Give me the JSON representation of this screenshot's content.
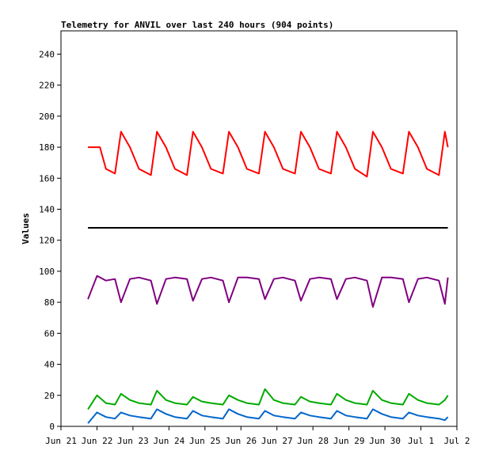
{
  "chart_data": {
    "type": "line",
    "title": "Telemetry for ANVIL over last 240 hours (904 points)",
    "xlabel": "",
    "ylabel": "Values",
    "xlim": [
      "2026-06-21",
      "2026-07-02"
    ],
    "ylim": [
      0,
      255
    ],
    "xticks": [
      {
        "date": "2026-06-21",
        "label": "Jun 21"
      },
      {
        "date": "2026-06-22",
        "label": "Jun 22"
      },
      {
        "date": "2026-06-23",
        "label": "Jun 23"
      },
      {
        "date": "2026-06-24",
        "label": "Jun 24"
      },
      {
        "date": "2026-06-25",
        "label": "Jun 25"
      },
      {
        "date": "2026-06-26",
        "label": "Jun 26"
      },
      {
        "date": "2026-06-27",
        "label": "Jun 27"
      },
      {
        "date": "2026-06-28",
        "label": "Jun 28"
      },
      {
        "date": "2026-06-29",
        "label": "Jun 29"
      },
      {
        "date": "2026-06-30",
        "label": "Jun 30"
      },
      {
        "date": "2026-07-01",
        "label": "Jul 1"
      },
      {
        "date": "2026-07-02",
        "label": "Jul 2"
      }
    ],
    "yticks": [
      0,
      20,
      40,
      60,
      80,
      100,
      120,
      140,
      160,
      180,
      200,
      220,
      240
    ],
    "grid": false,
    "legend": "none",
    "series": [
      {
        "color": "#ff0000",
        "x": [
          "2026-06-21 18:00",
          "2026-06-22 02:00",
          "2026-06-22 06:00",
          "2026-06-22 12:00",
          "2026-06-22 16:00",
          "2026-06-22 22:00",
          "2026-06-23 04:00",
          "2026-06-23 12:00",
          "2026-06-23 16:00",
          "2026-06-23 22:00",
          "2026-06-24 04:00",
          "2026-06-24 12:00",
          "2026-06-24 16:00",
          "2026-06-24 22:00",
          "2026-06-25 04:00",
          "2026-06-25 12:00",
          "2026-06-25 16:00",
          "2026-06-25 22:00",
          "2026-06-26 04:00",
          "2026-06-26 12:00",
          "2026-06-26 16:00",
          "2026-06-26 22:00",
          "2026-06-27 04:00",
          "2026-06-27 12:00",
          "2026-06-27 16:00",
          "2026-06-27 22:00",
          "2026-06-28 04:00",
          "2026-06-28 12:00",
          "2026-06-28 16:00",
          "2026-06-28 22:00",
          "2026-06-29 04:00",
          "2026-06-29 12:00",
          "2026-06-29 16:00",
          "2026-06-29 22:00",
          "2026-06-30 04:00",
          "2026-06-30 12:00",
          "2026-06-30 16:00",
          "2026-06-30 22:00",
          "2026-07-01 04:00",
          "2026-07-01 12:00",
          "2026-07-01 16:00",
          "2026-07-01 18:00"
        ],
        "y": [
          180,
          180,
          166,
          163,
          190,
          180,
          166,
          162,
          190,
          180,
          166,
          162,
          190,
          180,
          166,
          163,
          190,
          180,
          166,
          163,
          190,
          180,
          166,
          163,
          190,
          180,
          166,
          163,
          190,
          180,
          166,
          161,
          190,
          180,
          166,
          163,
          190,
          180,
          166,
          162,
          190,
          180
        ]
      },
      {
        "color": "#000000",
        "x": [
          "2026-06-21 18:00",
          "2026-07-01 18:00"
        ],
        "y": [
          128,
          128
        ]
      },
      {
        "color": "#800080",
        "x": [
          "2026-06-21 18:00",
          "2026-06-22 00:00",
          "2026-06-22 06:00",
          "2026-06-22 12:00",
          "2026-06-22 16:00",
          "2026-06-22 22:00",
          "2026-06-23 04:00",
          "2026-06-23 12:00",
          "2026-06-23 16:00",
          "2026-06-23 22:00",
          "2026-06-24 04:00",
          "2026-06-24 12:00",
          "2026-06-24 16:00",
          "2026-06-24 22:00",
          "2026-06-25 04:00",
          "2026-06-25 12:00",
          "2026-06-25 16:00",
          "2026-06-25 22:00",
          "2026-06-26 04:00",
          "2026-06-26 12:00",
          "2026-06-26 16:00",
          "2026-06-26 22:00",
          "2026-06-27 04:00",
          "2026-06-27 12:00",
          "2026-06-27 16:00",
          "2026-06-27 22:00",
          "2026-06-28 04:00",
          "2026-06-28 12:00",
          "2026-06-28 16:00",
          "2026-06-28 22:00",
          "2026-06-29 04:00",
          "2026-06-29 12:00",
          "2026-06-29 16:00",
          "2026-06-29 22:00",
          "2026-06-30 04:00",
          "2026-06-30 12:00",
          "2026-06-30 16:00",
          "2026-06-30 22:00",
          "2026-07-01 04:00",
          "2026-07-01 12:00",
          "2026-07-01 16:00",
          "2026-07-01 18:00"
        ],
        "y": [
          82,
          97,
          94,
          95,
          80,
          95,
          96,
          94,
          79,
          95,
          96,
          95,
          81,
          95,
          96,
          94,
          80,
          96,
          96,
          95,
          82,
          95,
          96,
          94,
          81,
          95,
          96,
          95,
          82,
          95,
          96,
          94,
          77,
          96,
          96,
          95,
          80,
          95,
          96,
          94,
          79,
          96
        ]
      },
      {
        "color": "#00aa00",
        "x": [
          "2026-06-21 18:00",
          "2026-06-22 00:00",
          "2026-06-22 06:00",
          "2026-06-22 12:00",
          "2026-06-22 16:00",
          "2026-06-22 22:00",
          "2026-06-23 04:00",
          "2026-06-23 12:00",
          "2026-06-23 16:00",
          "2026-06-23 22:00",
          "2026-06-24 04:00",
          "2026-06-24 12:00",
          "2026-06-24 16:00",
          "2026-06-24 22:00",
          "2026-06-25 04:00",
          "2026-06-25 12:00",
          "2026-06-25 16:00",
          "2026-06-25 22:00",
          "2026-06-26 04:00",
          "2026-06-26 12:00",
          "2026-06-26 16:00",
          "2026-06-26 22:00",
          "2026-06-27 04:00",
          "2026-06-27 12:00",
          "2026-06-27 16:00",
          "2026-06-27 22:00",
          "2026-06-28 04:00",
          "2026-06-28 12:00",
          "2026-06-28 16:00",
          "2026-06-28 22:00",
          "2026-06-29 04:00",
          "2026-06-29 12:00",
          "2026-06-29 16:00",
          "2026-06-29 22:00",
          "2026-06-30 04:00",
          "2026-06-30 12:00",
          "2026-06-30 16:00",
          "2026-06-30 22:00",
          "2026-07-01 04:00",
          "2026-07-01 12:00",
          "2026-07-01 16:00",
          "2026-07-01 18:00"
        ],
        "y": [
          11,
          20,
          15,
          14,
          21,
          17,
          15,
          14,
          23,
          17,
          15,
          14,
          19,
          16,
          15,
          14,
          20,
          17,
          15,
          14,
          24,
          17,
          15,
          14,
          19,
          16,
          15,
          14,
          21,
          17,
          15,
          14,
          23,
          17,
          15,
          14,
          21,
          17,
          15,
          14,
          17,
          20
        ]
      },
      {
        "color": "#0066cc",
        "x": [
          "2026-06-21 18:00",
          "2026-06-22 00:00",
          "2026-06-22 06:00",
          "2026-06-22 12:00",
          "2026-06-22 16:00",
          "2026-06-22 22:00",
          "2026-06-23 04:00",
          "2026-06-23 12:00",
          "2026-06-23 16:00",
          "2026-06-23 22:00",
          "2026-06-24 04:00",
          "2026-06-24 12:00",
          "2026-06-24 16:00",
          "2026-06-24 22:00",
          "2026-06-25 04:00",
          "2026-06-25 12:00",
          "2026-06-25 16:00",
          "2026-06-25 22:00",
          "2026-06-26 04:00",
          "2026-06-26 12:00",
          "2026-06-26 16:00",
          "2026-06-26 22:00",
          "2026-06-27 04:00",
          "2026-06-27 12:00",
          "2026-06-27 16:00",
          "2026-06-27 22:00",
          "2026-06-28 04:00",
          "2026-06-28 12:00",
          "2026-06-28 16:00",
          "2026-06-28 22:00",
          "2026-06-29 04:00",
          "2026-06-29 12:00",
          "2026-06-29 16:00",
          "2026-06-29 22:00",
          "2026-06-30 04:00",
          "2026-06-30 12:00",
          "2026-06-30 16:00",
          "2026-06-30 22:00",
          "2026-07-01 04:00",
          "2026-07-01 12:00",
          "2026-07-01 16:00",
          "2026-07-01 18:00"
        ],
        "y": [
          2,
          9,
          6,
          5,
          9,
          7,
          6,
          5,
          11,
          8,
          6,
          5,
          10,
          7,
          6,
          5,
          11,
          8,
          6,
          5,
          10,
          7,
          6,
          5,
          9,
          7,
          6,
          5,
          10,
          7,
          6,
          5,
          11,
          8,
          6,
          5,
          9,
          7,
          6,
          5,
          4,
          6
        ]
      }
    ]
  }
}
